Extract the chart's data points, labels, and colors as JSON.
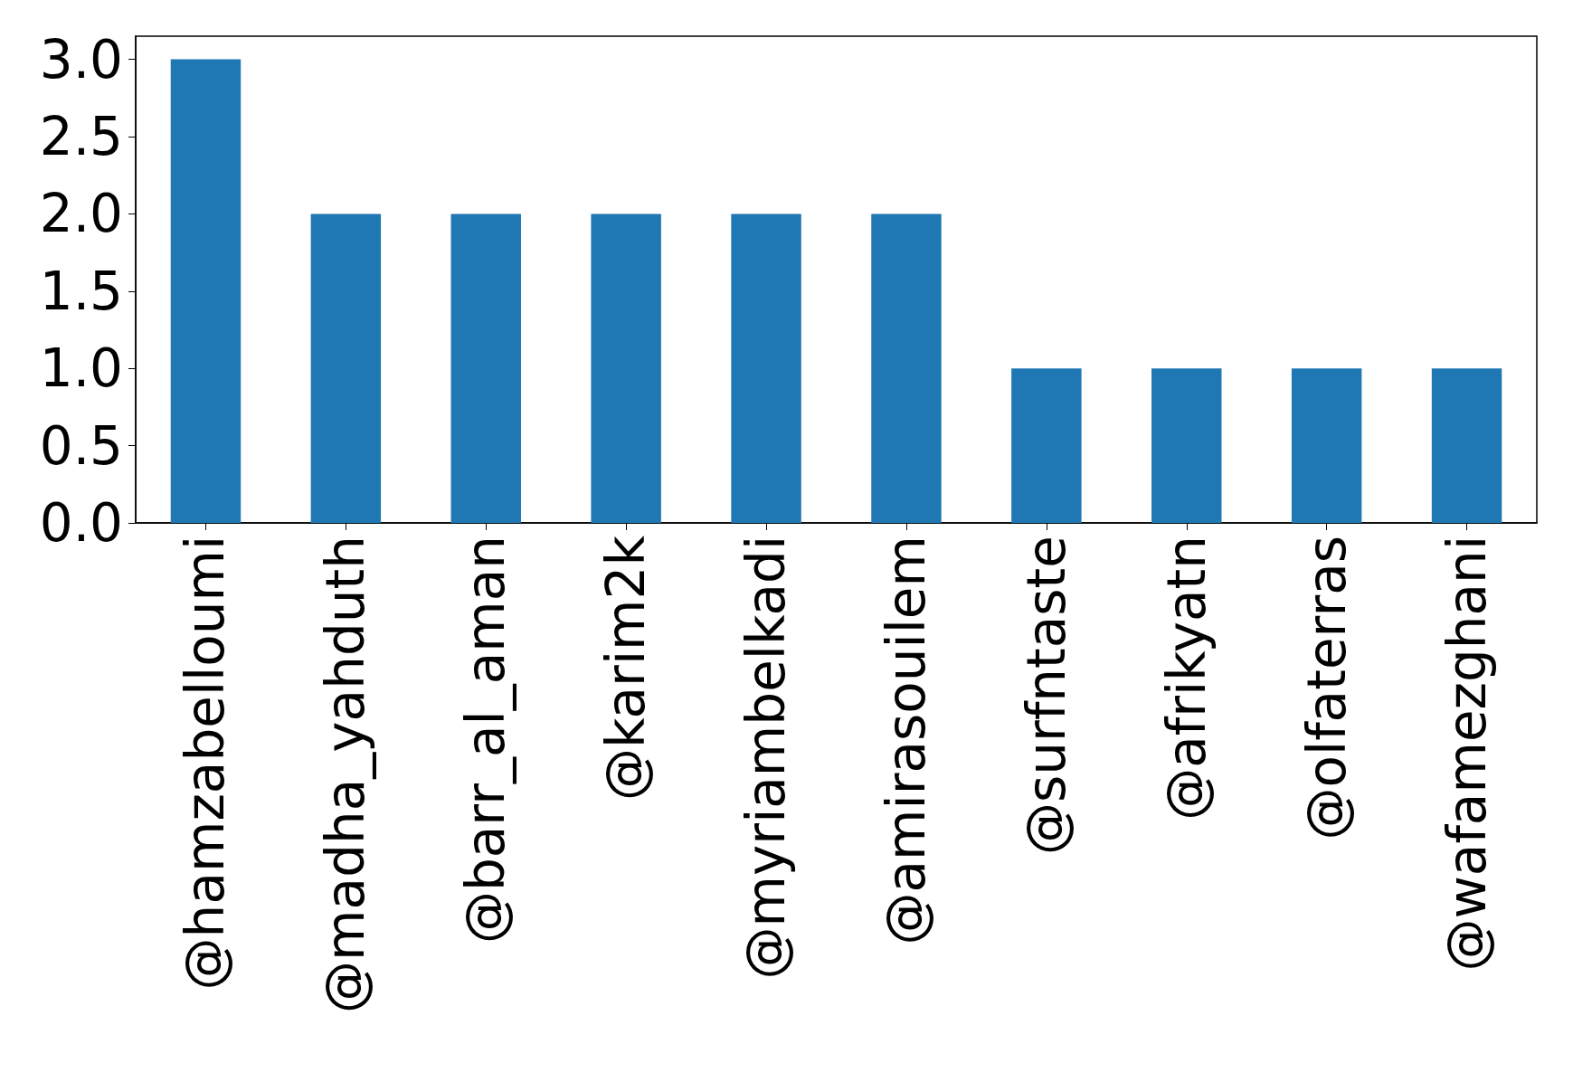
{
  "chart_data": {
    "type": "bar",
    "categories": [
      "@hamzabelloumi",
      "@madha_yahduth",
      "@barr_al_aman",
      "@karim2k",
      "@myriambelkadi",
      "@amirasouilem",
      "@surfntaste",
      "@afrikyatn",
      "@olfaterras",
      "@wafamezghani"
    ],
    "values": [
      3,
      2,
      2,
      2,
      2,
      2,
      1,
      1,
      1,
      1
    ],
    "color": "#1f77b4",
    "ylim": [
      0,
      3.15
    ],
    "yticks": [
      {
        "value": 0,
        "label": "0.0"
      },
      {
        "value": 0.5,
        "label": "0.5"
      },
      {
        "value": 1,
        "label": "1.0"
      },
      {
        "value": 1.5,
        "label": "1.5"
      },
      {
        "value": 2,
        "label": "2.0"
      },
      {
        "value": 2.5,
        "label": "2.5"
      },
      {
        "value": 3,
        "label": "3.0"
      }
    ],
    "grid": false
  }
}
